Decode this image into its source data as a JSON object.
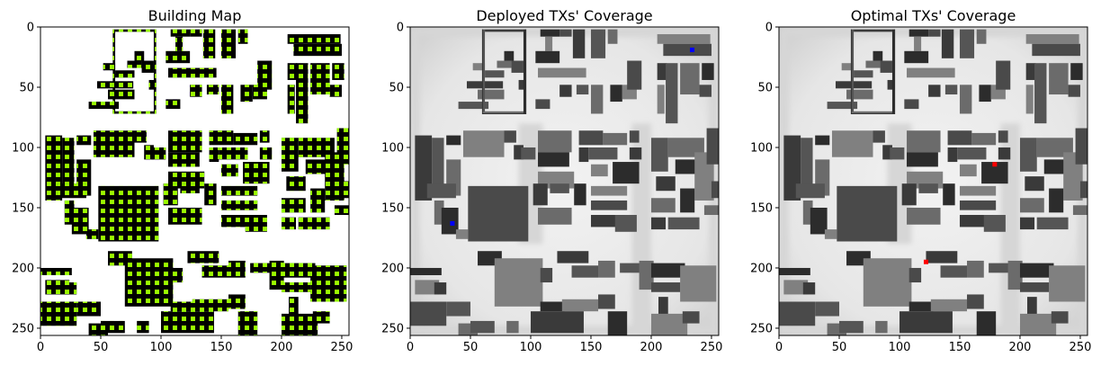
{
  "chart_data": [
    {
      "type": "heatmap",
      "title": "Building Map",
      "xlim": [
        0,
        255
      ],
      "ylim": [
        255,
        0
      ],
      "x_ticks": [
        0,
        50,
        100,
        150,
        200,
        250
      ],
      "y_ticks": [
        0,
        50,
        100,
        150,
        200,
        250
      ],
      "x_tick_labels": [
        "0",
        "50",
        "100",
        "150",
        "200",
        "250"
      ],
      "y_tick_labels": [
        "0",
        "50",
        "100",
        "150",
        "200",
        "250"
      ],
      "grid": false,
      "colors": {
        "building": "#000000",
        "ground": "#ffffff",
        "candidate_points": "#99ff00"
      }
    },
    {
      "type": "heatmap",
      "title": "Deployed TXs' Coverage",
      "xlim": [
        0,
        255
      ],
      "ylim": [
        255,
        0
      ],
      "x_ticks": [
        0,
        50,
        100,
        150,
        200,
        250
      ],
      "y_ticks": [
        0,
        50,
        100,
        150,
        200,
        250
      ],
      "x_tick_labels": [
        "0",
        "50",
        "100",
        "150",
        "200",
        "250"
      ],
      "y_tick_labels": [
        "0",
        "50",
        "100",
        "150",
        "200",
        "250"
      ],
      "grid": false,
      "transmitters": [
        {
          "x": 234,
          "y": 19
        },
        {
          "x": 35,
          "y": 163
        }
      ],
      "colors": {
        "tx": "#0000ff",
        "coverage_bg": "#ececec"
      }
    },
    {
      "type": "heatmap",
      "title": "Optimal TXs' Coverage",
      "xlim": [
        0,
        255
      ],
      "ylim": [
        255,
        0
      ],
      "x_ticks": [
        0,
        50,
        100,
        150,
        200,
        250
      ],
      "y_ticks": [
        0,
        50,
        100,
        150,
        200,
        250
      ],
      "x_tick_labels": [
        "0",
        "50",
        "100",
        "150",
        "200",
        "250"
      ],
      "y_tick_labels": [
        "0",
        "50",
        "100",
        "150",
        "200",
        "250"
      ],
      "grid": false,
      "transmitters": [
        {
          "x": 179,
          "y": 114
        },
        {
          "x": 122,
          "y": 195
        }
      ],
      "colors": {
        "tx": "#ff0000",
        "coverage_bg": "#ececec"
      }
    }
  ]
}
